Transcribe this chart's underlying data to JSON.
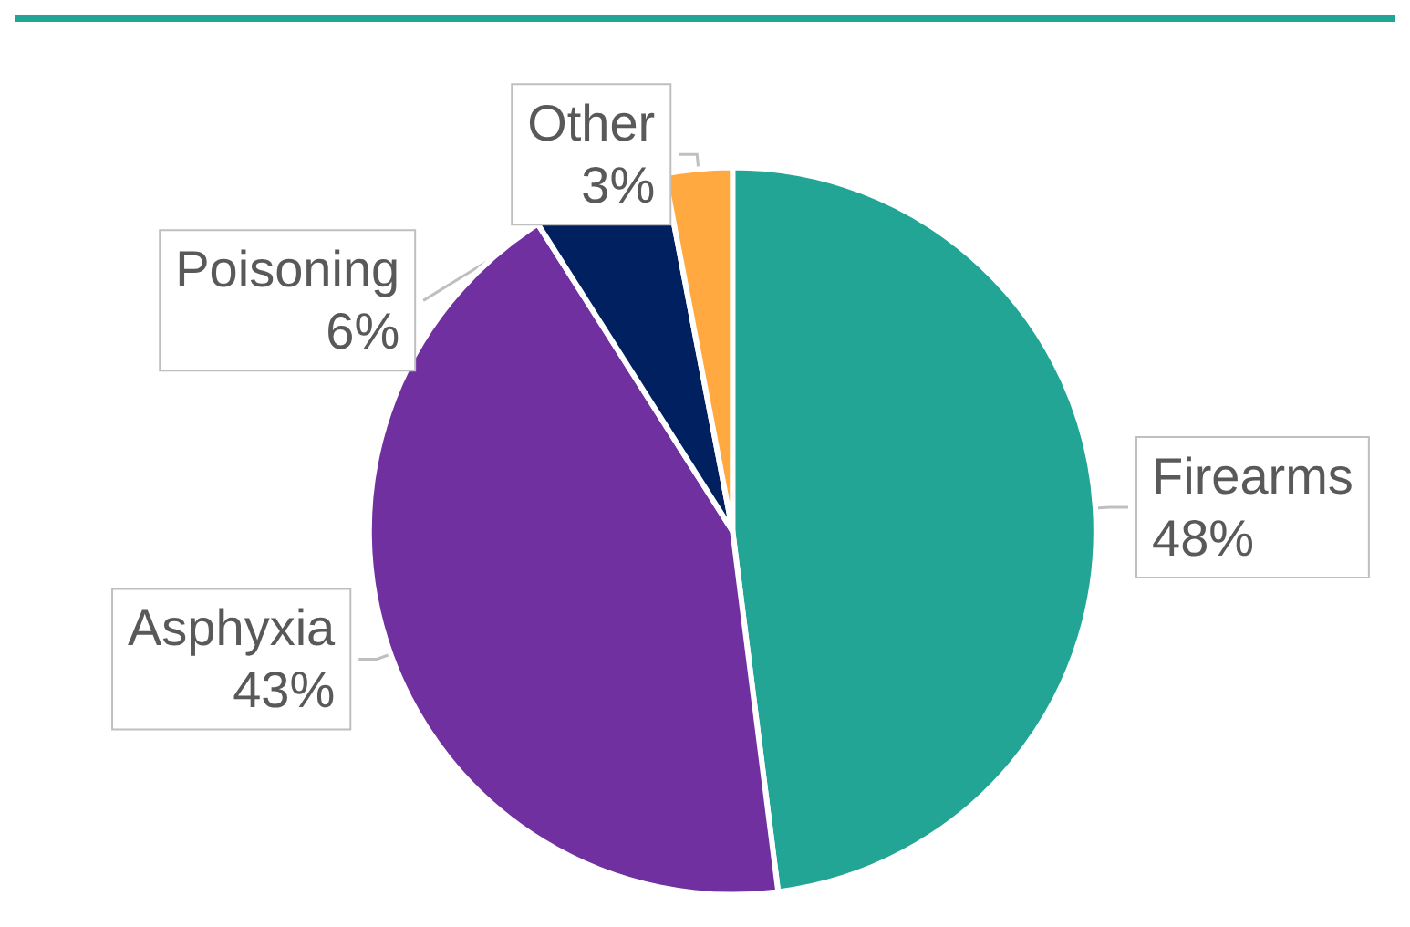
{
  "chart_data": {
    "type": "pie",
    "categories": [
      "Firearms",
      "Asphyxia",
      "Poisoning",
      "Other"
    ],
    "values": [
      48,
      43,
      6,
      3
    ],
    "colors": [
      "#22a595",
      "#7030a0",
      "#002060",
      "#ffa940"
    ],
    "value_labels": [
      "48%",
      "43%",
      "6%",
      "3%"
    ],
    "legend": false
  }
}
